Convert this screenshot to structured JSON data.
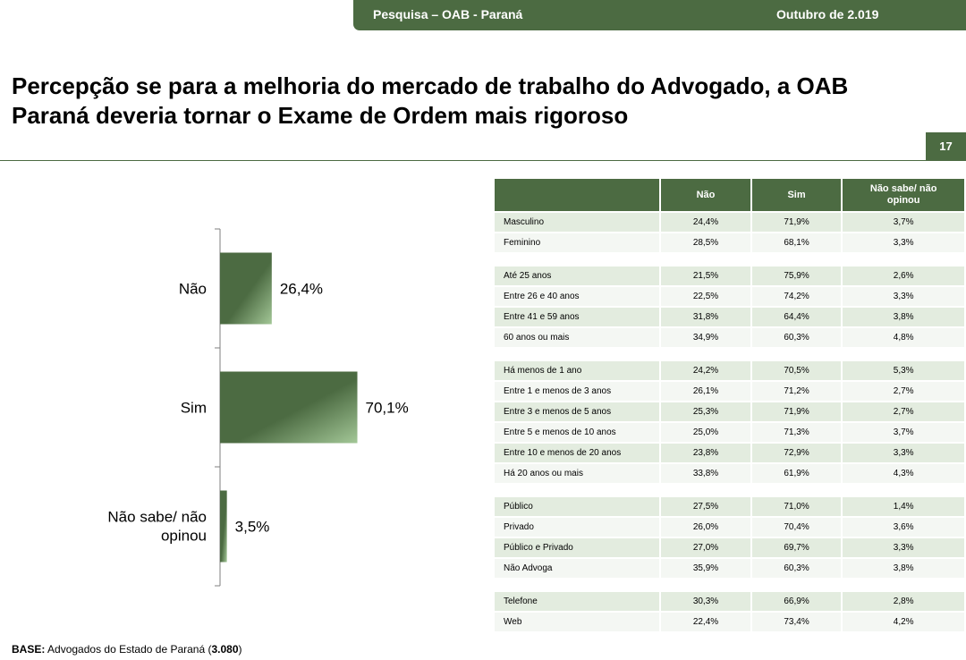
{
  "header": {
    "left_text": "Pesquisa – OAB - Paraná",
    "right_text": "Outubro de 2.019"
  },
  "title": "Percepção se para a melhoria do mercado de trabalho do Advogado, a OAB Paraná deveria tornar o Exame de Ordem mais rigoroso",
  "page_number": "17",
  "chart_data": {
    "type": "bar",
    "orientation": "horizontal",
    "categories": [
      "Não",
      "Sim",
      "Não sabe/ não opinou"
    ],
    "values": [
      26.4,
      70.1,
      3.5
    ],
    "value_labels": [
      "26,4%",
      "70,1%",
      "3,5%"
    ],
    "unit": "%",
    "xlim": [
      0,
      100
    ],
    "bar_color": "#4c6b42",
    "grid": false,
    "legend": "none"
  },
  "table": {
    "columns": [
      "",
      "Não",
      "Sim",
      "Não sabe/ não opinou"
    ],
    "groups": [
      [
        {
          "label": "Masculino",
          "values": [
            "24,4%",
            "71,9%",
            "3,7%"
          ]
        },
        {
          "label": "Feminino",
          "values": [
            "28,5%",
            "68,1%",
            "3,3%"
          ]
        }
      ],
      [
        {
          "label": "Até 25 anos",
          "values": [
            "21,5%",
            "75,9%",
            "2,6%"
          ]
        },
        {
          "label": "Entre 26 e 40 anos",
          "values": [
            "22,5%",
            "74,2%",
            "3,3%"
          ]
        },
        {
          "label": "Entre 41 e 59 anos",
          "values": [
            "31,8%",
            "64,4%",
            "3,8%"
          ]
        },
        {
          "label": "60 anos ou mais",
          "values": [
            "34,9%",
            "60,3%",
            "4,8%"
          ]
        }
      ],
      [
        {
          "label": "Há menos de 1 ano",
          "values": [
            "24,2%",
            "70,5%",
            "5,3%"
          ]
        },
        {
          "label": "Entre 1 e menos de 3 anos",
          "values": [
            "26,1%",
            "71,2%",
            "2,7%"
          ]
        },
        {
          "label": "Entre 3 e menos de 5 anos",
          "values": [
            "25,3%",
            "71,9%",
            "2,7%"
          ]
        },
        {
          "label": "Entre 5 e menos de 10 anos",
          "values": [
            "25,0%",
            "71,3%",
            "3,7%"
          ]
        },
        {
          "label": "Entre 10 e menos de 20 anos",
          "values": [
            "23,8%",
            "72,9%",
            "3,3%"
          ]
        },
        {
          "label": "Há 20 anos ou mais",
          "values": [
            "33,8%",
            "61,9%",
            "4,3%"
          ]
        }
      ],
      [
        {
          "label": "Público",
          "values": [
            "27,5%",
            "71,0%",
            "1,4%"
          ]
        },
        {
          "label": "Privado",
          "values": [
            "26,0%",
            "70,4%",
            "3,6%"
          ]
        },
        {
          "label": "Público e Privado",
          "values": [
            "27,0%",
            "69,7%",
            "3,3%"
          ]
        },
        {
          "label": "Não Advoga",
          "values": [
            "35,9%",
            "60,3%",
            "3,8%"
          ]
        }
      ],
      [
        {
          "label": "Telefone",
          "values": [
            "30,3%",
            "66,9%",
            "2,8%"
          ]
        },
        {
          "label": "Web",
          "values": [
            "22,4%",
            "73,4%",
            "4,2%"
          ]
        }
      ]
    ]
  },
  "base": {
    "label": "BASE:",
    "text": " Advogados do Estado de Paraná (",
    "count": "3.080",
    "close": ")"
  }
}
